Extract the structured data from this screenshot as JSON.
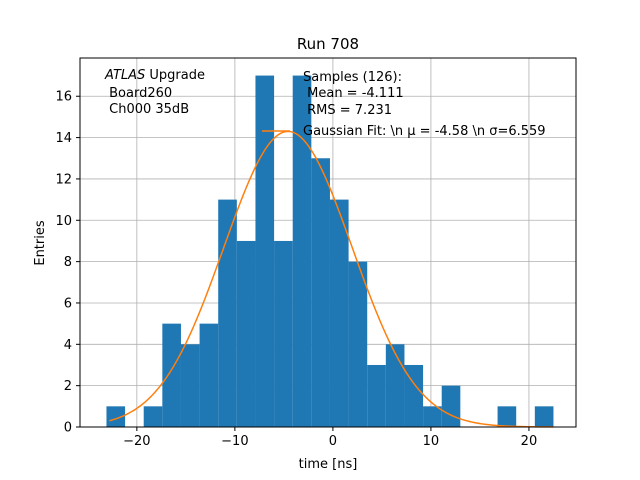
{
  "chart_data": {
    "type": "bar",
    "title": "Run 708",
    "xlabel": "time [ns]",
    "ylabel": "Entries",
    "xlim": [
      -25.8,
      24.8
    ],
    "ylim": [
      0,
      17.85
    ],
    "grid": true,
    "xticks": [
      -20,
      -10,
      0,
      10,
      20
    ],
    "xtick_labels": [
      "−20",
      "−10",
      "0",
      "10",
      "20"
    ],
    "yticks": [
      0,
      2,
      4,
      6,
      8,
      10,
      12,
      14,
      16
    ],
    "yticks_labels": [
      "0",
      "2",
      "4",
      "6",
      "8",
      "10",
      "12",
      "14",
      "16"
    ],
    "bar_color": "#1f77b4",
    "fit_color": "#ff7f0e",
    "bins": {
      "edges": [
        -23.1,
        -21.2,
        -19.3,
        -17.4,
        -15.5,
        -13.6,
        -11.7,
        -9.8,
        -7.9,
        -6.0,
        -4.1,
        -2.2,
        -0.3,
        1.6,
        3.5,
        5.4,
        7.3,
        9.2,
        11.1,
        13.0,
        14.9,
        16.8,
        18.7,
        20.6,
        22.5
      ],
      "counts": [
        1,
        0,
        1,
        5,
        4,
        5,
        11,
        9,
        17,
        9,
        17,
        13,
        11,
        8,
        3,
        4,
        3,
        1,
        2,
        0,
        0,
        1,
        0,
        1
      ]
    },
    "series": [
      {
        "name": "Gaussian Fit: \\n μ = -4.58 \\n σ=6.559",
        "type": "line",
        "mu": -4.58,
        "sigma": 6.559,
        "amplitude": 14.3,
        "x_range": [
          -22.8,
          22.5
        ]
      }
    ],
    "legend_placement": "top-right",
    "annotations": {
      "atlas_italic": "ATLAS",
      "atlas_rest": " Upgrade",
      "board": " Board260",
      "channel": " Ch000 35dB",
      "samples": "Samples (126):",
      "mean": " Mean = -4.111",
      "rms": " RMS = 7.231"
    }
  }
}
